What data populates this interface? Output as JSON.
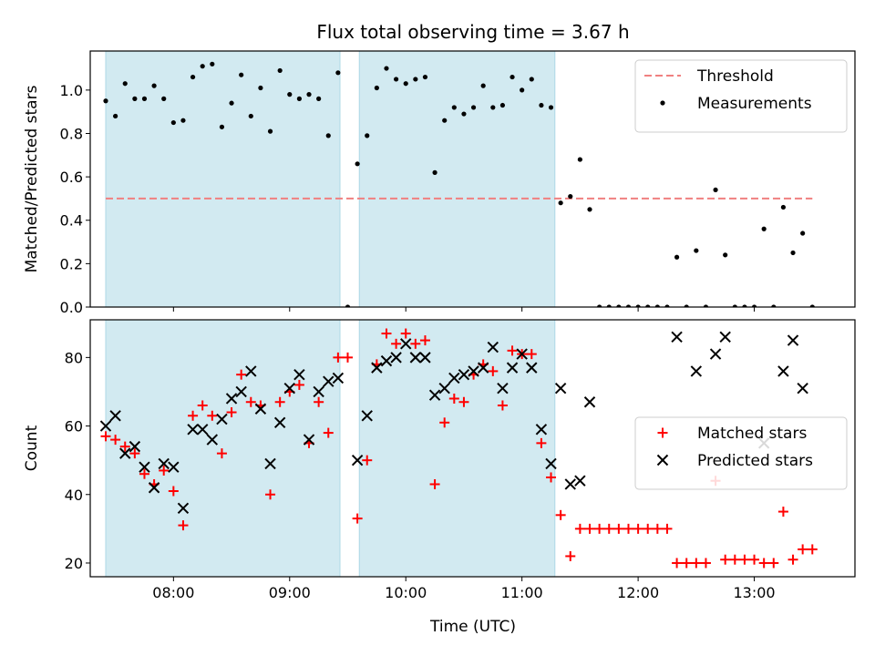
{
  "chart_data": {
    "title": "Flux total observing time = 3.67 h",
    "xlabel": "Time (UTC)",
    "xlim": [
      "07:17",
      "13:52"
    ],
    "xticks": [
      "08:00",
      "09:00",
      "10:00",
      "11:00",
      "12:00",
      "13:00"
    ],
    "shaded_intervals": [
      [
        "07:25",
        "09:26"
      ],
      [
        "09:36",
        "11:17"
      ]
    ],
    "shade_color": "#add8e6",
    "panels": [
      {
        "type": "scatter",
        "ylabel": "Matched/Predicted stars",
        "ylim": [
          0,
          1.18
        ],
        "yticks": [
          "0.0",
          "0.2",
          "0.4",
          "0.6",
          "0.8",
          "1.0"
        ],
        "legend_position": "top-right",
        "threshold": {
          "name": "Threshold",
          "value": 0.5,
          "x_range": [
            "07:25",
            "13:30"
          ],
          "color": "#f08080"
        },
        "series": [
          {
            "name": "Measurements",
            "color": "#000000",
            "marker": "dot",
            "points": [
              [
                "07:25",
                0.95
              ],
              [
                "07:30",
                0.88
              ],
              [
                "07:35",
                1.03
              ],
              [
                "07:40",
                0.96
              ],
              [
                "07:45",
                0.96
              ],
              [
                "07:50",
                1.02
              ],
              [
                "07:55",
                0.96
              ],
              [
                "08:00",
                0.85
              ],
              [
                "08:05",
                0.86
              ],
              [
                "08:10",
                1.06
              ],
              [
                "08:15",
                1.11
              ],
              [
                "08:20",
                1.12
              ],
              [
                "08:25",
                0.83
              ],
              [
                "08:30",
                0.94
              ],
              [
                "08:35",
                1.07
              ],
              [
                "08:40",
                0.88
              ],
              [
                "08:45",
                1.01
              ],
              [
                "08:50",
                0.81
              ],
              [
                "08:55",
                1.09
              ],
              [
                "09:00",
                0.98
              ],
              [
                "09:05",
                0.96
              ],
              [
                "09:10",
                0.98
              ],
              [
                "09:15",
                0.96
              ],
              [
                "09:20",
                0.79
              ],
              [
                "09:25",
                1.08
              ],
              [
                "09:30",
                0.0
              ],
              [
                "09:35",
                0.66
              ],
              [
                "09:40",
                0.79
              ],
              [
                "09:45",
                1.01
              ],
              [
                "09:50",
                1.1
              ],
              [
                "09:55",
                1.05
              ],
              [
                "10:00",
                1.03
              ],
              [
                "10:05",
                1.05
              ],
              [
                "10:10",
                1.06
              ],
              [
                "10:15",
                0.62
              ],
              [
                "10:20",
                0.86
              ],
              [
                "10:25",
                0.92
              ],
              [
                "10:30",
                0.89
              ],
              [
                "10:35",
                0.92
              ],
              [
                "10:40",
                1.02
              ],
              [
                "10:45",
                0.92
              ],
              [
                "10:50",
                0.93
              ],
              [
                "10:55",
                1.06
              ],
              [
                "11:00",
                1.0
              ],
              [
                "11:05",
                1.05
              ],
              [
                "11:10",
                0.93
              ],
              [
                "11:15",
                0.92
              ],
              [
                "11:20",
                0.48
              ],
              [
                "11:25",
                0.51
              ],
              [
                "11:30",
                0.68
              ],
              [
                "11:35",
                0.45
              ],
              [
                "11:40",
                0.0
              ],
              [
                "11:45",
                0.0
              ],
              [
                "11:50",
                0.0
              ],
              [
                "11:55",
                0.0
              ],
              [
                "12:00",
                0.0
              ],
              [
                "12:05",
                0.0
              ],
              [
                "12:10",
                0.0
              ],
              [
                "12:15",
                0.0
              ],
              [
                "12:20",
                0.23
              ],
              [
                "12:25",
                0.0
              ],
              [
                "12:30",
                0.26
              ],
              [
                "12:35",
                0.0
              ],
              [
                "12:40",
                0.54
              ],
              [
                "12:45",
                0.24
              ],
              [
                "12:50",
                0.0
              ],
              [
                "12:55",
                0.0
              ],
              [
                "13:00",
                0.0
              ],
              [
                "13:05",
                0.36
              ],
              [
                "13:10",
                0.0
              ],
              [
                "13:15",
                0.46
              ],
              [
                "13:20",
                0.25
              ],
              [
                "13:25",
                0.34
              ],
              [
                "13:30",
                0.0
              ]
            ]
          }
        ]
      },
      {
        "type": "scatter",
        "ylabel": "Count",
        "ylim": [
          16,
          91
        ],
        "yticks": [
          "20",
          "40",
          "60",
          "80"
        ],
        "legend_position": "center-right",
        "series": [
          {
            "name": "Matched stars",
            "color": "#ff0000",
            "marker": "plus",
            "points": [
              [
                "07:25",
                57
              ],
              [
                "07:30",
                56
              ],
              [
                "07:35",
                54
              ],
              [
                "07:40",
                52
              ],
              [
                "07:45",
                46
              ],
              [
                "07:50",
                43
              ],
              [
                "07:55",
                47
              ],
              [
                "08:00",
                41
              ],
              [
                "08:05",
                31
              ],
              [
                "08:10",
                63
              ],
              [
                "08:15",
                66
              ],
              [
                "08:20",
                63
              ],
              [
                "08:25",
                52
              ],
              [
                "08:30",
                64
              ],
              [
                "08:35",
                75
              ],
              [
                "08:40",
                67
              ],
              [
                "08:45",
                66
              ],
              [
                "08:50",
                40
              ],
              [
                "08:55",
                67
              ],
              [
                "09:00",
                70
              ],
              [
                "09:05",
                72
              ],
              [
                "09:10",
                55
              ],
              [
                "09:15",
                67
              ],
              [
                "09:20",
                58
              ],
              [
                "09:25",
                80
              ],
              [
                "09:30",
                80
              ],
              [
                "09:35",
                33
              ],
              [
                "09:40",
                50
              ],
              [
                "09:45",
                78
              ],
              [
                "09:50",
                87
              ],
              [
                "09:55",
                84
              ],
              [
                "10:00",
                87
              ],
              [
                "10:05",
                84
              ],
              [
                "10:10",
                85
              ],
              [
                "10:15",
                43
              ],
              [
                "10:20",
                61
              ],
              [
                "10:25",
                68
              ],
              [
                "10:30",
                67
              ],
              [
                "10:35",
                75
              ],
              [
                "10:40",
                78
              ],
              [
                "10:45",
                76
              ],
              [
                "10:50",
                66
              ],
              [
                "10:55",
                82
              ],
              [
                "11:00",
                81
              ],
              [
                "11:05",
                81
              ],
              [
                "11:10",
                55
              ],
              [
                "11:15",
                45
              ],
              [
                "11:20",
                34
              ],
              [
                "11:25",
                22
              ],
              [
                "11:30",
                30
              ],
              [
                "11:35",
                30
              ],
              [
                "11:40",
                30
              ],
              [
                "11:45",
                30
              ],
              [
                "11:50",
                30
              ],
              [
                "11:55",
                30
              ],
              [
                "12:00",
                30
              ],
              [
                "12:05",
                30
              ],
              [
                "12:10",
                30
              ],
              [
                "12:15",
                30
              ],
              [
                "12:20",
                20
              ],
              [
                "12:25",
                20
              ],
              [
                "12:30",
                20
              ],
              [
                "12:35",
                20
              ],
              [
                "12:40",
                44
              ],
              [
                "12:45",
                21
              ],
              [
                "12:50",
                21
              ],
              [
                "12:55",
                21
              ],
              [
                "13:00",
                21
              ],
              [
                "13:05",
                20
              ],
              [
                "13:10",
                20
              ],
              [
                "13:15",
                35
              ],
              [
                "13:20",
                21
              ],
              [
                "13:25",
                24
              ],
              [
                "13:30",
                24
              ]
            ]
          },
          {
            "name": "Predicted stars",
            "color": "#000000",
            "marker": "cross",
            "points": [
              [
                "07:25",
                60
              ],
              [
                "07:30",
                63
              ],
              [
                "07:35",
                52
              ],
              [
                "07:40",
                54
              ],
              [
                "07:45",
                48
              ],
              [
                "07:50",
                42
              ],
              [
                "07:55",
                49
              ],
              [
                "08:00",
                48
              ],
              [
                "08:05",
                36
              ],
              [
                "08:10",
                59
              ],
              [
                "08:15",
                59
              ],
              [
                "08:20",
                56
              ],
              [
                "08:25",
                62
              ],
              [
                "08:30",
                68
              ],
              [
                "08:35",
                70
              ],
              [
                "08:40",
                76
              ],
              [
                "08:45",
                65
              ],
              [
                "08:50",
                49
              ],
              [
                "08:55",
                61
              ],
              [
                "09:00",
                71
              ],
              [
                "09:05",
                75
              ],
              [
                "09:10",
                56
              ],
              [
                "09:15",
                70
              ],
              [
                "09:20",
                73
              ],
              [
                "09:25",
                74
              ],
              [
                "09:35",
                50
              ],
              [
                "09:40",
                63
              ],
              [
                "09:45",
                77
              ],
              [
                "09:50",
                79
              ],
              [
                "09:55",
                80
              ],
              [
                "10:00",
                84
              ],
              [
                "10:05",
                80
              ],
              [
                "10:10",
                80
              ],
              [
                "10:15",
                69
              ],
              [
                "10:20",
                71
              ],
              [
                "10:25",
                74
              ],
              [
                "10:30",
                75
              ],
              [
                "10:35",
                76
              ],
              [
                "10:40",
                77
              ],
              [
                "10:45",
                83
              ],
              [
                "10:50",
                71
              ],
              [
                "10:55",
                77
              ],
              [
                "11:00",
                81
              ],
              [
                "11:05",
                77
              ],
              [
                "11:10",
                59
              ],
              [
                "11:15",
                49
              ],
              [
                "11:20",
                71
              ],
              [
                "11:25",
                43
              ],
              [
                "11:30",
                44
              ],
              [
                "11:35",
                67
              ],
              [
                "12:20",
                86
              ],
              [
                "12:30",
                76
              ],
              [
                "12:40",
                81
              ],
              [
                "12:45",
                86
              ],
              [
                "13:05",
                55
              ],
              [
                "13:15",
                76
              ],
              [
                "13:20",
                85
              ],
              [
                "13:25",
                71
              ]
            ]
          }
        ]
      }
    ]
  }
}
